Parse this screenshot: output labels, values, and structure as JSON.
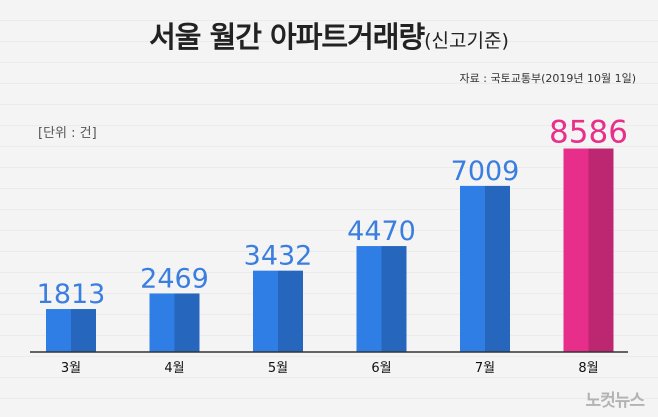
{
  "header": {
    "title": "서울 월간 아파트거래량",
    "title_suffix": "(신고기준)",
    "source": "자료 : 국토교통부(2019년 10월 1일)",
    "unit": "[단위 : 건]"
  },
  "logo": "노컷뉴스",
  "colors": {
    "bar": "#2e7ee6",
    "highlight": "#e62e8a"
  },
  "chart_data": {
    "type": "bar",
    "title": "서울 월간 아파트거래량(신고기준)",
    "xlabel": "",
    "ylabel": "",
    "unit": "[단위 : 건]",
    "categories": [
      "3월",
      "4월",
      "5월",
      "6월",
      "7월",
      "8월"
    ],
    "values": [
      1813,
      2469,
      3432,
      4470,
      7009,
      8586
    ],
    "highlight_index": 5,
    "ylim": [
      0,
      9000
    ],
    "grid": false,
    "legend": "none"
  }
}
